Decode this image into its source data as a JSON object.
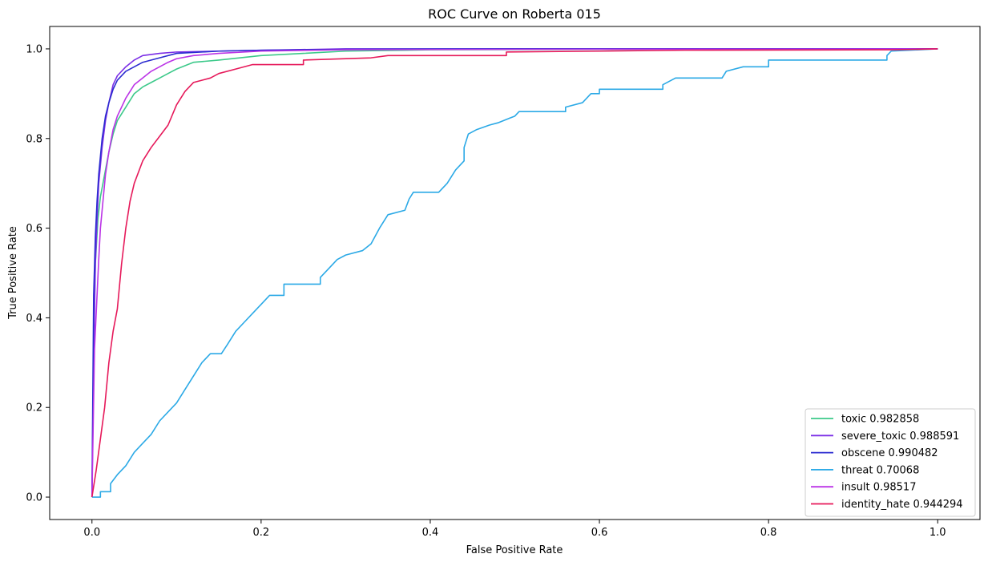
{
  "chart_data": {
    "type": "line",
    "title": "ROC Curve on Roberta 015",
    "xlabel": "False Positive Rate",
    "ylabel": "True Positive Rate",
    "xlim": [
      -0.05,
      1.05
    ],
    "ylim": [
      -0.05,
      1.05
    ],
    "xticks": [
      0.0,
      0.2,
      0.4,
      0.6,
      0.8,
      1.0
    ],
    "yticks": [
      0.0,
      0.2,
      0.4,
      0.6,
      0.8,
      1.0
    ],
    "xtick_labels": [
      "0.0",
      "0.2",
      "0.4",
      "0.6",
      "0.8",
      "1.0"
    ],
    "ytick_labels": [
      "0.0",
      "0.2",
      "0.4",
      "0.6",
      "0.8",
      "1.0"
    ],
    "grid": false,
    "legend_position": "lower-right",
    "series": [
      {
        "name": "toxic 0.982858",
        "color": "#3cc98a",
        "points": [
          [
            0,
            0
          ],
          [
            0.002,
            0.35
          ],
          [
            0.004,
            0.52
          ],
          [
            0.007,
            0.62
          ],
          [
            0.01,
            0.67
          ],
          [
            0.015,
            0.72
          ],
          [
            0.02,
            0.77
          ],
          [
            0.025,
            0.81
          ],
          [
            0.03,
            0.84
          ],
          [
            0.04,
            0.87
          ],
          [
            0.05,
            0.9
          ],
          [
            0.06,
            0.915
          ],
          [
            0.07,
            0.925
          ],
          [
            0.08,
            0.935
          ],
          [
            0.09,
            0.945
          ],
          [
            0.1,
            0.955
          ],
          [
            0.12,
            0.97
          ],
          [
            0.15,
            0.975
          ],
          [
            0.2,
            0.985
          ],
          [
            0.25,
            0.99
          ],
          [
            0.3,
            0.995
          ],
          [
            0.4,
            0.998
          ],
          [
            0.6,
            0.999
          ],
          [
            0.8,
            1.0
          ],
          [
            1.0,
            1.0
          ]
        ]
      },
      {
        "name": "severe_toxic 0.988591",
        "color": "#7b2ee6",
        "points": [
          [
            0,
            0
          ],
          [
            0.002,
            0.3
          ],
          [
            0.004,
            0.52
          ],
          [
            0.006,
            0.62
          ],
          [
            0.008,
            0.7
          ],
          [
            0.012,
            0.78
          ],
          [
            0.016,
            0.84
          ],
          [
            0.02,
            0.88
          ],
          [
            0.025,
            0.92
          ],
          [
            0.03,
            0.94
          ],
          [
            0.04,
            0.96
          ],
          [
            0.05,
            0.975
          ],
          [
            0.06,
            0.985
          ],
          [
            0.08,
            0.99
          ],
          [
            0.1,
            0.993
          ],
          [
            0.15,
            0.995
          ],
          [
            0.2,
            0.997
          ],
          [
            0.3,
            1.0
          ],
          [
            1.0,
            1.0
          ]
        ]
      },
      {
        "name": "obscene 0.990482",
        "color": "#2b2bd0",
        "points": [
          [
            0,
            0
          ],
          [
            0.002,
            0.45
          ],
          [
            0.004,
            0.58
          ],
          [
            0.006,
            0.66
          ],
          [
            0.008,
            0.72
          ],
          [
            0.012,
            0.8
          ],
          [
            0.016,
            0.85
          ],
          [
            0.02,
            0.88
          ],
          [
            0.025,
            0.91
          ],
          [
            0.03,
            0.93
          ],
          [
            0.04,
            0.95
          ],
          [
            0.05,
            0.96
          ],
          [
            0.06,
            0.97
          ],
          [
            0.08,
            0.98
          ],
          [
            0.1,
            0.99
          ],
          [
            0.15,
            0.995
          ],
          [
            0.2,
            0.997
          ],
          [
            0.3,
            0.999
          ],
          [
            0.5,
            1.0
          ],
          [
            1.0,
            1.0
          ]
        ]
      },
      {
        "name": "threat 0.70068",
        "color": "#2ba9e6",
        "points": [
          [
            0,
            0
          ],
          [
            0.01,
            0.0
          ],
          [
            0.01,
            0.012
          ],
          [
            0.022,
            0.012
          ],
          [
            0.022,
            0.03
          ],
          [
            0.03,
            0.05
          ],
          [
            0.04,
            0.07
          ],
          [
            0.05,
            0.1
          ],
          [
            0.06,
            0.12
          ],
          [
            0.07,
            0.14
          ],
          [
            0.08,
            0.17
          ],
          [
            0.09,
            0.19
          ],
          [
            0.1,
            0.21
          ],
          [
            0.11,
            0.24
          ],
          [
            0.12,
            0.27
          ],
          [
            0.13,
            0.3
          ],
          [
            0.14,
            0.32
          ],
          [
            0.153,
            0.32
          ],
          [
            0.16,
            0.34
          ],
          [
            0.17,
            0.37
          ],
          [
            0.18,
            0.39
          ],
          [
            0.19,
            0.41
          ],
          [
            0.2,
            0.43
          ],
          [
            0.21,
            0.45
          ],
          [
            0.227,
            0.45
          ],
          [
            0.227,
            0.475
          ],
          [
            0.27,
            0.475
          ],
          [
            0.27,
            0.49
          ],
          [
            0.28,
            0.51
          ],
          [
            0.29,
            0.53
          ],
          [
            0.3,
            0.54
          ],
          [
            0.32,
            0.55
          ],
          [
            0.33,
            0.565
          ],
          [
            0.34,
            0.6
          ],
          [
            0.35,
            0.63
          ],
          [
            0.37,
            0.64
          ],
          [
            0.375,
            0.665
          ],
          [
            0.38,
            0.68
          ],
          [
            0.41,
            0.68
          ],
          [
            0.42,
            0.7
          ],
          [
            0.43,
            0.73
          ],
          [
            0.44,
            0.75
          ],
          [
            0.44,
            0.78
          ],
          [
            0.445,
            0.81
          ],
          [
            0.455,
            0.82
          ],
          [
            0.47,
            0.83
          ],
          [
            0.48,
            0.835
          ],
          [
            0.5,
            0.85
          ],
          [
            0.505,
            0.86
          ],
          [
            0.56,
            0.86
          ],
          [
            0.56,
            0.87
          ],
          [
            0.58,
            0.88
          ],
          [
            0.59,
            0.9
          ],
          [
            0.6,
            0.9
          ],
          [
            0.6,
            0.91
          ],
          [
            0.675,
            0.91
          ],
          [
            0.675,
            0.92
          ],
          [
            0.69,
            0.935
          ],
          [
            0.745,
            0.935
          ],
          [
            0.75,
            0.95
          ],
          [
            0.77,
            0.96
          ],
          [
            0.8,
            0.96
          ],
          [
            0.8,
            0.975
          ],
          [
            0.94,
            0.975
          ],
          [
            0.94,
            0.985
          ],
          [
            0.945,
            0.995
          ],
          [
            1.0,
            1.0
          ]
        ]
      },
      {
        "name": "insult 0.98517",
        "color": "#bb33e6",
        "points": [
          [
            0,
            0
          ],
          [
            0.003,
            0.33
          ],
          [
            0.006,
            0.45
          ],
          [
            0.008,
            0.53
          ],
          [
            0.01,
            0.6
          ],
          [
            0.013,
            0.66
          ],
          [
            0.016,
            0.72
          ],
          [
            0.02,
            0.77
          ],
          [
            0.025,
            0.82
          ],
          [
            0.03,
            0.85
          ],
          [
            0.04,
            0.89
          ],
          [
            0.05,
            0.92
          ],
          [
            0.06,
            0.935
          ],
          [
            0.07,
            0.95
          ],
          [
            0.08,
            0.96
          ],
          [
            0.09,
            0.97
          ],
          [
            0.1,
            0.978
          ],
          [
            0.12,
            0.985
          ],
          [
            0.15,
            0.99
          ],
          [
            0.2,
            0.995
          ],
          [
            0.3,
            0.998
          ],
          [
            0.5,
            0.999
          ],
          [
            1.0,
            1.0
          ]
        ]
      },
      {
        "name": "identity_hate 0.944294",
        "color": "#e6195a",
        "points": [
          [
            0,
            0
          ],
          [
            0.005,
            0.06
          ],
          [
            0.01,
            0.13
          ],
          [
            0.015,
            0.2
          ],
          [
            0.02,
            0.3
          ],
          [
            0.025,
            0.37
          ],
          [
            0.03,
            0.42
          ],
          [
            0.035,
            0.52
          ],
          [
            0.04,
            0.6
          ],
          [
            0.045,
            0.66
          ],
          [
            0.05,
            0.7
          ],
          [
            0.06,
            0.75
          ],
          [
            0.07,
            0.78
          ],
          [
            0.08,
            0.805
          ],
          [
            0.09,
            0.83
          ],
          [
            0.1,
            0.875
          ],
          [
            0.11,
            0.905
          ],
          [
            0.12,
            0.925
          ],
          [
            0.14,
            0.935
          ],
          [
            0.15,
            0.945
          ],
          [
            0.17,
            0.955
          ],
          [
            0.19,
            0.965
          ],
          [
            0.25,
            0.965
          ],
          [
            0.25,
            0.975
          ],
          [
            0.33,
            0.98
          ],
          [
            0.35,
            0.985
          ],
          [
            0.49,
            0.985
          ],
          [
            0.49,
            0.993
          ],
          [
            0.6,
            0.995
          ],
          [
            0.7,
            0.997
          ],
          [
            0.95,
            0.998
          ],
          [
            1.0,
            1.0
          ]
        ]
      }
    ]
  }
}
